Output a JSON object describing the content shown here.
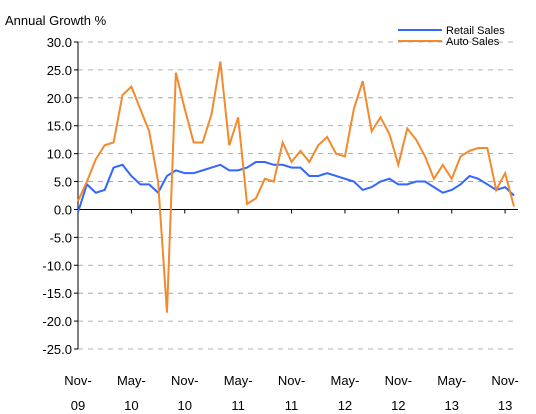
{
  "chart_data": {
    "type": "line",
    "title": "Annual Growth %",
    "categories": [
      "Nov-\n09",
      null,
      null,
      null,
      null,
      null,
      "May-\n10",
      null,
      null,
      null,
      null,
      null,
      "Nov-\n10",
      null,
      null,
      null,
      null,
      null,
      "May-\n11",
      null,
      null,
      null,
      null,
      null,
      "Nov-\n11",
      null,
      null,
      null,
      null,
      null,
      "May-\n12",
      null,
      null,
      null,
      null,
      null,
      "Nov-\n12",
      null,
      null,
      null,
      null,
      null,
      "May-\n13",
      null,
      null,
      null,
      null,
      null,
      "Nov-\n13",
      null
    ],
    "series": [
      {
        "name": "Retail Sales",
        "color": "#3366ff",
        "values": [
          -0.5,
          4.5,
          3,
          3.5,
          7.5,
          8,
          6,
          4.5,
          4.5,
          3,
          6,
          7,
          6.5,
          6.5,
          7,
          7.5,
          8,
          7,
          7,
          7.5,
          8.5,
          8.5,
          8,
          8,
          7.5,
          7.5,
          6,
          6,
          6.5,
          6,
          5.5,
          5,
          3.5,
          4,
          5,
          5.5,
          4.5,
          4.5,
          5,
          5,
          4,
          3,
          3.5,
          4.5,
          6,
          5.5,
          4.5,
          3.5,
          4,
          2.5
        ]
      },
      {
        "name": "Auto Sales",
        "color": "#f28a2e",
        "values": [
          1.5,
          5,
          9,
          11.5,
          12,
          20.5,
          22,
          18,
          14,
          5,
          -18.5,
          24.5,
          18,
          12,
          12,
          17,
          26.5,
          11.5,
          16.5,
          1,
          2,
          5.5,
          5,
          12,
          8.5,
          10.5,
          8.5,
          11.5,
          13,
          10,
          9.5,
          18,
          23,
          14,
          16.5,
          13.5,
          8,
          14.5,
          12.5,
          9.5,
          5.5,
          8,
          5.5,
          9.5,
          10.5,
          11,
          11,
          3.5,
          6.5,
          0.5
        ]
      }
    ],
    "ylim": [
      -25,
      30
    ],
    "yticks": [
      {
        "value": -25,
        "label": "-25.0"
      },
      {
        "value": -20,
        "label": "-20.0"
      },
      {
        "value": -15,
        "label": "-15.0"
      },
      {
        "value": -10,
        "label": "-10.0"
      },
      {
        "value": -5,
        "label": "-5.0"
      },
      {
        "value": 0,
        "label": "0.0"
      },
      {
        "value": 5,
        "label": "5.0"
      },
      {
        "value": 10,
        "label": "10.0"
      },
      {
        "value": 15,
        "label": "15.0"
      },
      {
        "value": 20,
        "label": "20.0"
      },
      {
        "value": 25,
        "label": "25.0"
      },
      {
        "value": 30,
        "label": "30.0"
      }
    ],
    "grid": true,
    "legend": "top-right"
  }
}
